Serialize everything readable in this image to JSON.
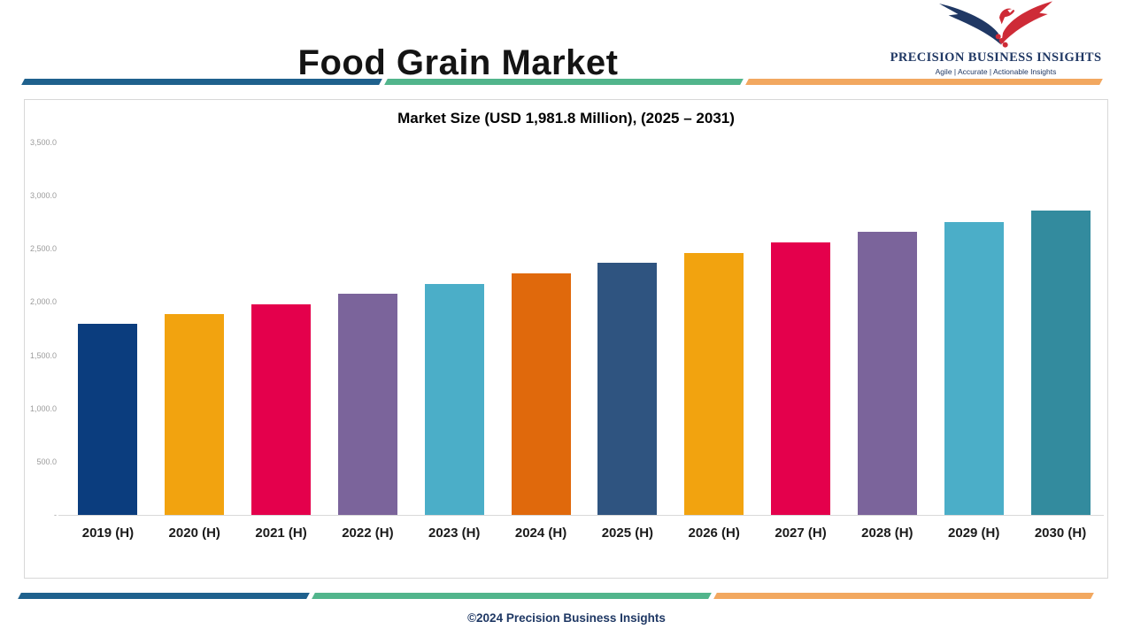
{
  "header": {
    "title": "Food Grain Market",
    "logo": {
      "name": "PRECISION BUSINESS INSIGHTS",
      "tagline": "Agile | Accurate | Actionable Insights"
    }
  },
  "chart_data": {
    "type": "bar",
    "title": "Market Size (USD 1,981.8 Million), (2025 – 2031)",
    "categories": [
      "2019 (H)",
      "2020 (H)",
      "2021 (H)",
      "2022 (H)",
      "2023 (H)",
      "2024 (H)",
      "2025 (H)",
      "2026 (H)",
      "2027 (H)",
      "2028 (H)",
      "2029 (H)",
      "2030 (H)"
    ],
    "values": [
      1800,
      1890,
      1980,
      2080,
      2170,
      2270,
      2370,
      2460,
      2560,
      2660,
      2750,
      2860
    ],
    "bar_colors": [
      "#0B3D7E",
      "#F2A30F",
      "#E4004C",
      "#7B649B",
      "#4BAEC8",
      "#E0690C",
      "#2F5480",
      "#F2A30F",
      "#E4004C",
      "#7B649B",
      "#4BAEC8",
      "#338B9E"
    ],
    "xlabel": "",
    "ylabel": "",
    "ylim": [
      0,
      3500
    ],
    "ytick_step": 500,
    "ytick_labels": [
      "3,500.0",
      "3,000.0",
      "2,500.0",
      "2,000.0",
      "1,500.0",
      "1,000.0",
      "500.0",
      "-"
    ],
    "grid": false,
    "legend": false
  },
  "footer": {
    "copyright": "©2024 Precision Business Insights"
  },
  "colors": {
    "divider_blue": "#1F618D",
    "divider_teal": "#52B58C",
    "divider_orange": "#F2A860",
    "logo_navy": "#203864",
    "logo_red": "#CE2B37",
    "title_text": "#141414",
    "axis_label_gray": "#9b9b9b"
  }
}
